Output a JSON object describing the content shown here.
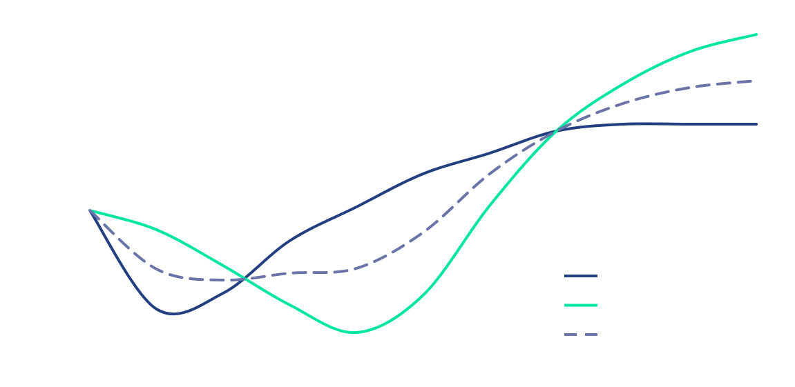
{
  "chart_data": {
    "type": "line",
    "x": [
      0,
      10,
      20,
      30,
      40,
      50,
      60,
      70,
      80,
      90,
      100
    ],
    "xlim": [
      0,
      100
    ],
    "ylim": [
      0,
      100
    ],
    "legend": "lower right",
    "series": [
      {
        "color": "#233f80",
        "linestyle": "solid",
        "values": [
          45,
          16.4,
          21,
          36.2,
          46,
          55.6,
          61.6,
          68,
          70,
          70,
          70
        ]
      },
      {
        "color": "#00e6a0",
        "linestyle": "solid",
        "values": [
          45,
          39.4,
          29,
          17.6,
          9.6,
          20.4,
          46.4,
          68,
          81.6,
          91,
          96
        ]
      },
      {
        "color": "#6b74a8",
        "linestyle": "dashed",
        "values": [
          45,
          28,
          24.8,
          26.8,
          28.2,
          38.6,
          55.6,
          68,
          76,
          80.6,
          82.6
        ]
      }
    ]
  }
}
